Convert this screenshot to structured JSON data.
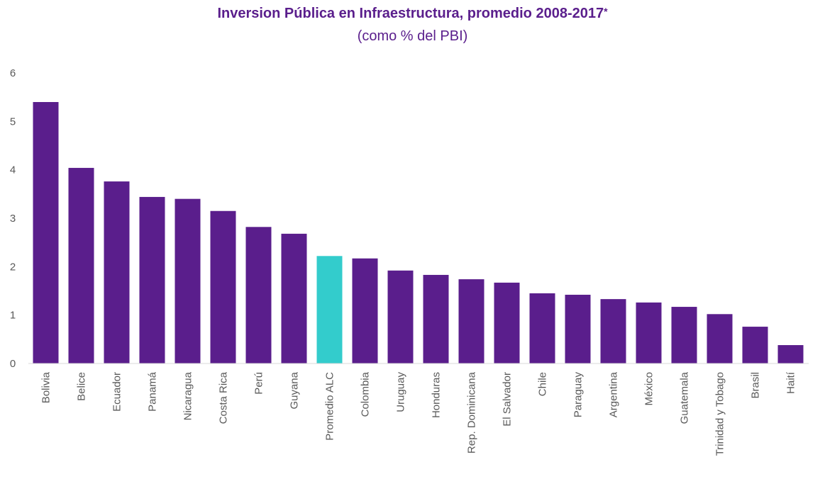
{
  "chart_data": {
    "type": "bar",
    "title": "Inversion Pública en Infraestructura, promedio 2008-2017",
    "title_marker": "*",
    "subtitle": "(como % del PBI)",
    "xlabel": "",
    "ylabel": "",
    "ylim": [
      0,
      6
    ],
    "yticks": [
      "0",
      "1",
      "2",
      "3",
      "4",
      "5",
      "6"
    ],
    "grid": false,
    "categories": [
      "Bolivia",
      "Belice",
      "Ecuador",
      "Panamá",
      "Nicaragua",
      "Costa Rica",
      "Perú",
      "Guyana",
      "Promedio ALC",
      "Colombia",
      "Uruguay",
      "Honduras",
      "Rep. Dominicana",
      "El Salvador",
      "Chile",
      "Paraguay",
      "Argentina",
      "México",
      "Guatemala",
      "Trinidad y Tobago",
      "Brasil",
      "Haití"
    ],
    "values": [
      5.4,
      4.04,
      3.76,
      3.44,
      3.4,
      3.15,
      2.82,
      2.68,
      2.22,
      2.17,
      1.92,
      1.83,
      1.74,
      1.67,
      1.45,
      1.42,
      1.33,
      1.26,
      1.17,
      1.02,
      0.76,
      0.38
    ],
    "highlight": "Promedio ALC",
    "colors": {
      "bar": "#5a1e8c",
      "highlight": "#33cccc",
      "title": "#5a1e8c"
    }
  }
}
